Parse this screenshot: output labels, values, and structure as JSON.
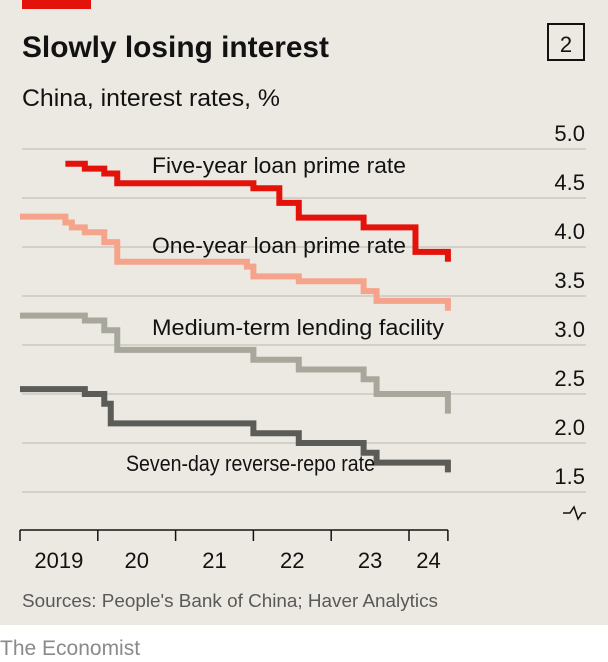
{
  "header": {
    "title": "Slowly losing interest",
    "subtitle": "China, interest rates, %",
    "chart_number": "2"
  },
  "footer": {
    "source": "Sources: People's Bank of China; Haver Analytics",
    "brand": "The Economist"
  },
  "colors": {
    "background": "#ebe9e1",
    "accent": "#e3120b",
    "five_year": "#e3120b",
    "one_year": "#f6a38c",
    "mlf": "#a8a79b",
    "repo": "#5b5b57",
    "grid": "#c9c8c0"
  },
  "chart_data": {
    "type": "line",
    "step": true,
    "title": "Slowly losing interest",
    "subtitle": "China, interest rates, %",
    "xlabel": "",
    "ylabel": "",
    "ylim": [
      1.5,
      5.0
    ],
    "y_axis_position": "right",
    "y_axis_break": true,
    "yticks": [
      "5.0",
      "4.5",
      "4.0",
      "3.5",
      "3.0",
      "2.5",
      "2.0",
      "1.5"
    ],
    "xticks": [
      "2019",
      "20",
      "21",
      "22",
      "23",
      "24"
    ],
    "x_end": "2024-07",
    "grid": true,
    "series": [
      {
        "name": "Five-year loan prime rate",
        "color_key": "five_year",
        "points": [
          [
            "2019-08",
            4.85
          ],
          [
            "2019-11",
            4.8
          ],
          [
            "2020-02",
            4.75
          ],
          [
            "2020-04",
            4.65
          ],
          [
            "2022-01",
            4.6
          ],
          [
            "2022-05",
            4.45
          ],
          [
            "2022-08",
            4.3
          ],
          [
            "2023-06",
            4.2
          ],
          [
            "2024-02",
            3.95
          ],
          [
            "2024-07",
            3.85
          ]
        ]
      },
      {
        "name": "One-year loan prime rate",
        "color_key": "one_year",
        "points": [
          [
            "2019-01",
            4.31
          ],
          [
            "2019-08",
            4.25
          ],
          [
            "2019-09",
            4.2
          ],
          [
            "2019-11",
            4.15
          ],
          [
            "2020-02",
            4.05
          ],
          [
            "2020-04",
            3.85
          ],
          [
            "2021-12",
            3.8
          ],
          [
            "2022-01",
            3.7
          ],
          [
            "2022-08",
            3.65
          ],
          [
            "2023-06",
            3.55
          ],
          [
            "2023-08",
            3.45
          ],
          [
            "2024-07",
            3.35
          ]
        ]
      },
      {
        "name": "Medium-term lending facility",
        "color_key": "mlf",
        "points": [
          [
            "2019-01",
            3.3
          ],
          [
            "2019-11",
            3.25
          ],
          [
            "2020-02",
            3.15
          ],
          [
            "2020-04",
            2.95
          ],
          [
            "2022-01",
            2.85
          ],
          [
            "2022-08",
            2.75
          ],
          [
            "2023-06",
            2.65
          ],
          [
            "2023-08",
            2.5
          ],
          [
            "2024-07",
            2.3
          ]
        ]
      },
      {
        "name": "Seven-day reverse-repo rate",
        "color_key": "repo",
        "points": [
          [
            "2019-01",
            2.55
          ],
          [
            "2019-11",
            2.5
          ],
          [
            "2020-02",
            2.4
          ],
          [
            "2020-03",
            2.2
          ],
          [
            "2022-01",
            2.1
          ],
          [
            "2022-08",
            2.0
          ],
          [
            "2023-06",
            1.9
          ],
          [
            "2023-08",
            1.8
          ],
          [
            "2024-07",
            1.7
          ]
        ]
      }
    ]
  }
}
